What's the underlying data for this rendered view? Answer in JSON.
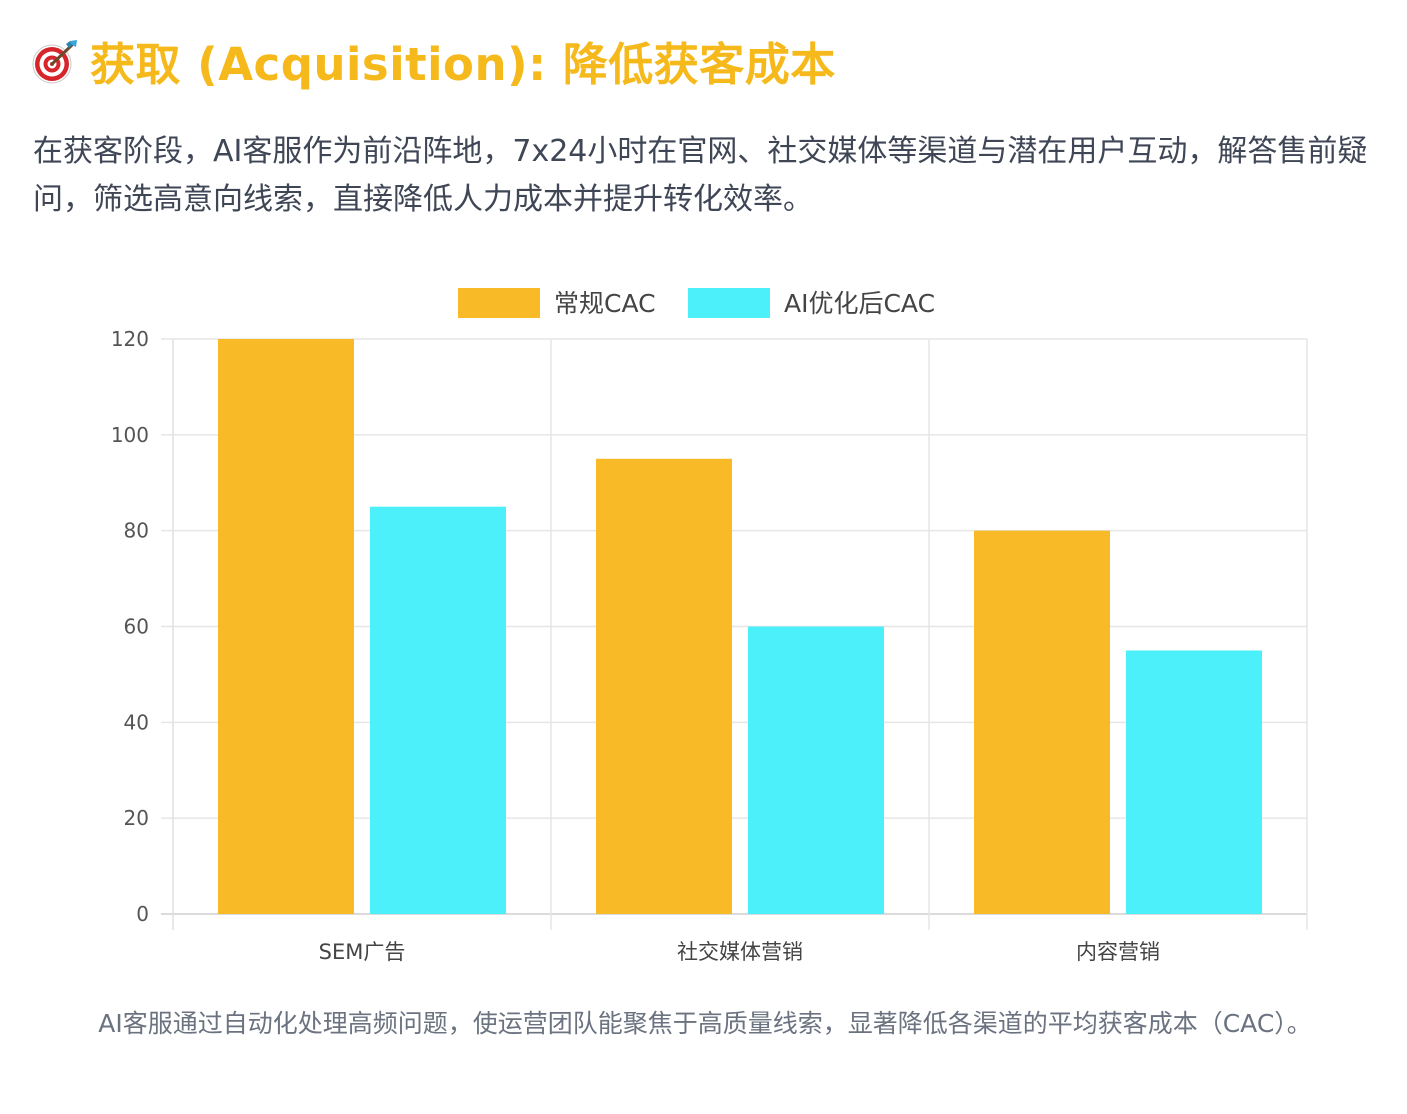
{
  "header": {
    "icon": "direct-hit-target-icon",
    "title": "获取 (Acquisition): 降低获客成本"
  },
  "intro": "在获客阶段，AI客服作为前沿阵地，7x24小时在官网、社交媒体等渠道与潜在用户互动，解答售前疑问，筛选高意向线索，直接降低人力成本并提升转化效率。",
  "caption": "AI客服通过自动化处理高频问题，使运营团队能聚焦于高质量线索，显著降低各渠道的平均获客成本（CAC）。",
  "colors": {
    "title": "#f6b91c",
    "series_regular": "#f8ba26",
    "series_ai": "#4cf0fa"
  },
  "chart_data": {
    "type": "bar",
    "categories": [
      "SEM广告",
      "社交媒体营销",
      "内容营销"
    ],
    "series": [
      {
        "name": "常规CAC",
        "values": [
          120,
          95,
          80
        ],
        "color": "#f8ba26"
      },
      {
        "name": "AI优化后CAC",
        "values": [
          85,
          60,
          55
        ],
        "color": "#4cf0fa"
      }
    ],
    "ylim": [
      0,
      120
    ],
    "yticks": [
      0,
      20,
      40,
      60,
      80,
      100,
      120
    ],
    "grid": true,
    "legend": "top-center"
  }
}
